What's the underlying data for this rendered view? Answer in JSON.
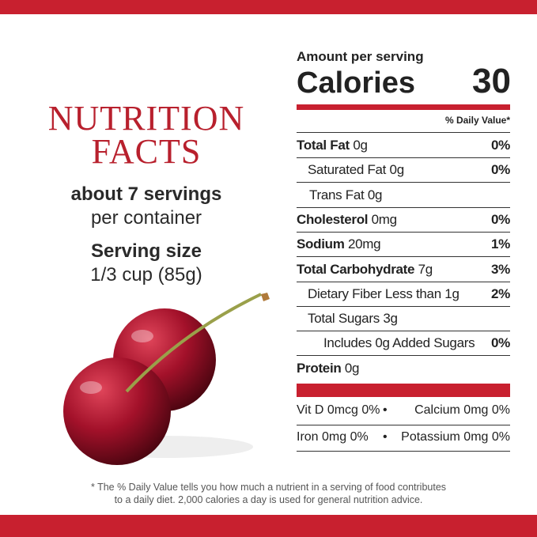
{
  "left": {
    "title_line1": "NUTRITION",
    "title_line2": "FACTS",
    "servings": "about 7 servings",
    "servings_note": "per container",
    "serving_size_label": "Serving size",
    "serving_size": "1/3 cup (85g)"
  },
  "panel": {
    "amount_per_serving": "Amount per serving",
    "calories_label": "Calories",
    "calories": "30",
    "dv_header": "% Daily Value*",
    "nutrients": [
      {
        "name": "Total Fat",
        "amount": "0g",
        "dv": "0%"
      },
      {
        "name": "Saturated Fat",
        "amount": "0g",
        "dv": "0%"
      },
      {
        "name": "Trans Fat",
        "amount": "0g"
      },
      {
        "name": "Cholesterol",
        "amount": "0mg",
        "dv": "0%"
      },
      {
        "name": "Sodium",
        "amount": "20mg",
        "dv": "1%"
      },
      {
        "name": "Total Carbohydrate",
        "amount": "7g",
        "dv": "3%"
      },
      {
        "name": "Dietary Fiber",
        "amount": "Less than 1g",
        "dv": "2%"
      },
      {
        "name": "Total Sugars",
        "amount": "3g"
      },
      {
        "name": "Includes 0g Added Sugars",
        "dv": "0%"
      },
      {
        "name": "Protein",
        "amount": "0g"
      }
    ],
    "vitamins": [
      [
        "Vit D 0mcg 0%",
        "Calcium 0mg 0%"
      ],
      [
        "Iron 0mg 0%",
        "Potassium 0mg 0%"
      ]
    ]
  },
  "footnote": {
    "line1": "* The % Daily Value tells you how much a nutrient in a serving of food contributes",
    "line2": "to a daily diet. 2,000 calories a day is used for general nutrition advice."
  }
}
